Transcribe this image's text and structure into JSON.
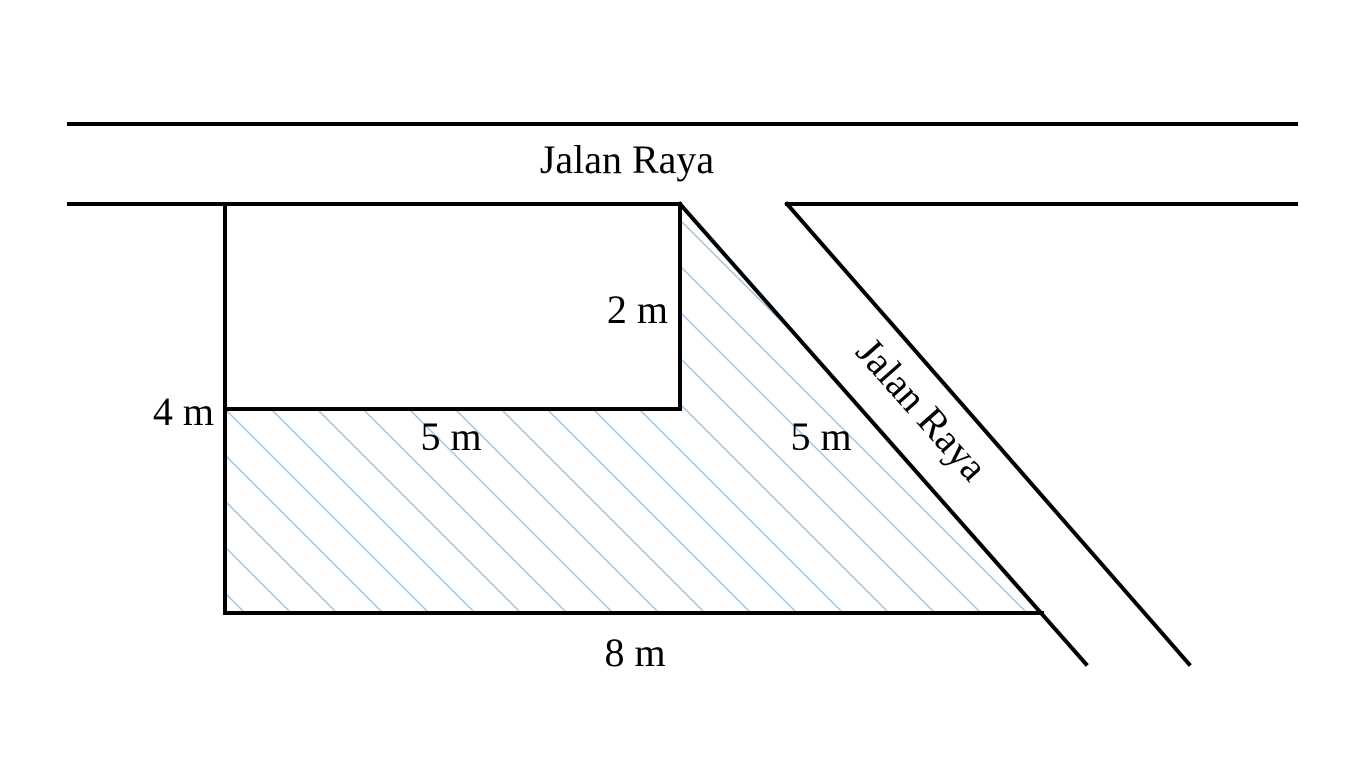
{
  "labels": {
    "road_main": "Jalan Raya",
    "road_diagonal": "Jalan Raya",
    "side_left_total": "4 m",
    "side_inner_vertical": "2 m",
    "side_inner_horizontal": "5 m",
    "side_slant": "5 m",
    "side_bottom": "8 m"
  },
  "colors": {
    "line": "#000000",
    "hatch": "#9dc3e6",
    "background": "#ffffff"
  }
}
